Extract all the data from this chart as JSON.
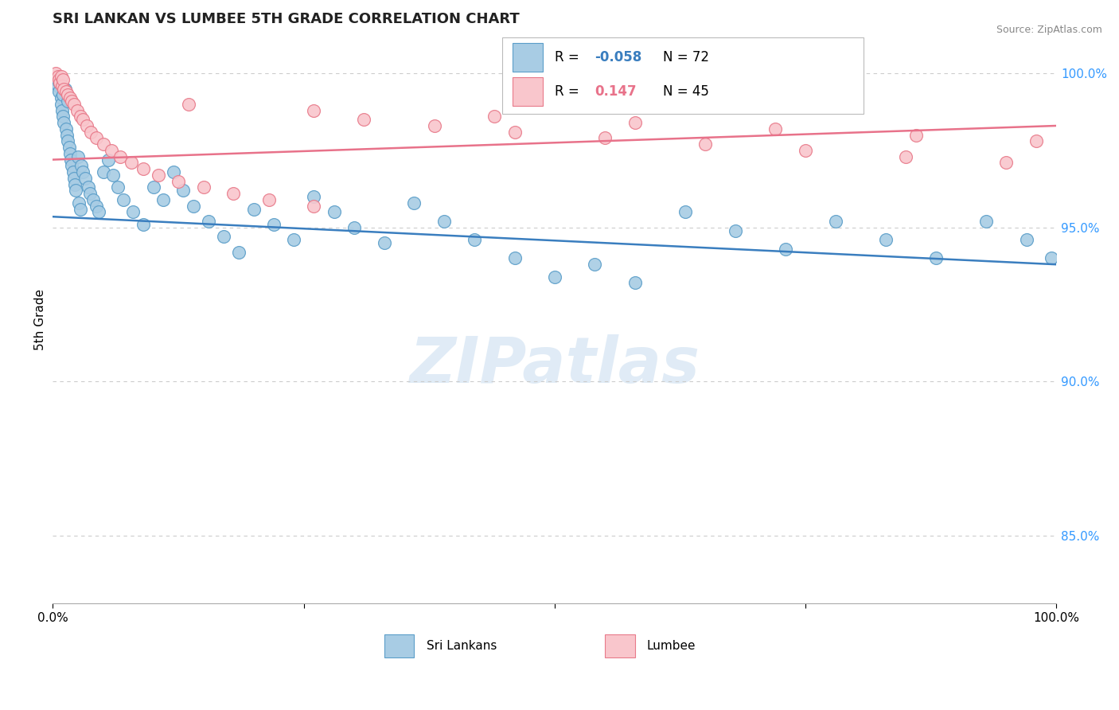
{
  "title": "SRI LANKAN VS LUMBEE 5TH GRADE CORRELATION CHART",
  "source": "Source: ZipAtlas.com",
  "ylabel": "5th Grade",
  "xmin": 0.0,
  "xmax": 1.0,
  "ymin": 0.828,
  "ymax": 1.012,
  "right_yticks": [
    0.85,
    0.9,
    0.95,
    1.0
  ],
  "right_yticklabels": [
    "85.0%",
    "90.0%",
    "95.0%",
    "100.0%"
  ],
  "sri_lankan_color": "#a8cce4",
  "sri_lankan_edge": "#5b9ec9",
  "lumbee_color": "#f9c6cc",
  "lumbee_edge": "#e87a8a",
  "trend_blue": "#3a7ebf",
  "trend_pink": "#e8728a",
  "legend_R_blue": "-0.058",
  "legend_N_blue": "72",
  "legend_R_pink": "0.147",
  "legend_N_pink": "45",
  "watermark": "ZIPatlas",
  "sri_lankans_x": [
    0.003,
    0.005,
    0.006,
    0.007,
    0.008,
    0.008,
    0.009,
    0.01,
    0.01,
    0.011,
    0.012,
    0.013,
    0.014,
    0.015,
    0.015,
    0.016,
    0.017,
    0.018,
    0.019,
    0.02,
    0.021,
    0.022,
    0.023,
    0.025,
    0.026,
    0.027,
    0.028,
    0.03,
    0.032,
    0.035,
    0.037,
    0.04,
    0.043,
    0.046,
    0.05,
    0.055,
    0.06,
    0.065,
    0.07,
    0.08,
    0.09,
    0.1,
    0.11,
    0.12,
    0.13,
    0.14,
    0.155,
    0.17,
    0.185,
    0.2,
    0.22,
    0.24,
    0.26,
    0.28,
    0.3,
    0.33,
    0.36,
    0.39,
    0.42,
    0.46,
    0.5,
    0.54,
    0.58,
    0.63,
    0.68,
    0.73,
    0.78,
    0.83,
    0.88,
    0.93,
    0.97,
    0.995
  ],
  "sri_lankans_y": [
    0.998,
    0.996,
    0.994,
    0.997,
    0.992,
    0.99,
    0.988,
    0.986,
    0.993,
    0.984,
    0.995,
    0.982,
    0.98,
    0.978,
    0.991,
    0.976,
    0.974,
    0.972,
    0.97,
    0.968,
    0.966,
    0.964,
    0.962,
    0.973,
    0.958,
    0.956,
    0.97,
    0.968,
    0.966,
    0.963,
    0.961,
    0.959,
    0.957,
    0.955,
    0.968,
    0.972,
    0.967,
    0.963,
    0.959,
    0.955,
    0.951,
    0.963,
    0.959,
    0.968,
    0.962,
    0.957,
    0.952,
    0.947,
    0.942,
    0.956,
    0.951,
    0.946,
    0.96,
    0.955,
    0.95,
    0.945,
    0.958,
    0.952,
    0.946,
    0.94,
    0.934,
    0.938,
    0.932,
    0.955,
    0.949,
    0.943,
    0.952,
    0.946,
    0.94,
    0.952,
    0.946,
    0.94
  ],
  "lumbee_x": [
    0.003,
    0.005,
    0.006,
    0.007,
    0.008,
    0.009,
    0.01,
    0.011,
    0.013,
    0.015,
    0.017,
    0.019,
    0.021,
    0.024,
    0.027,
    0.03,
    0.034,
    0.038,
    0.043,
    0.05,
    0.058,
    0.067,
    0.078,
    0.09,
    0.105,
    0.125,
    0.15,
    0.18,
    0.215,
    0.26,
    0.31,
    0.38,
    0.46,
    0.55,
    0.65,
    0.75,
    0.85,
    0.95,
    0.135,
    0.26,
    0.44,
    0.58,
    0.72,
    0.86,
    0.98
  ],
  "lumbee_y": [
    1.0,
    0.999,
    0.998,
    0.997,
    0.999,
    0.996,
    0.998,
    0.995,
    0.994,
    0.993,
    0.992,
    0.991,
    0.99,
    0.988,
    0.986,
    0.985,
    0.983,
    0.981,
    0.979,
    0.977,
    0.975,
    0.973,
    0.971,
    0.969,
    0.967,
    0.965,
    0.963,
    0.961,
    0.959,
    0.957,
    0.985,
    0.983,
    0.981,
    0.979,
    0.977,
    0.975,
    0.973,
    0.971,
    0.99,
    0.988,
    0.986,
    0.984,
    0.982,
    0.98,
    0.978
  ]
}
